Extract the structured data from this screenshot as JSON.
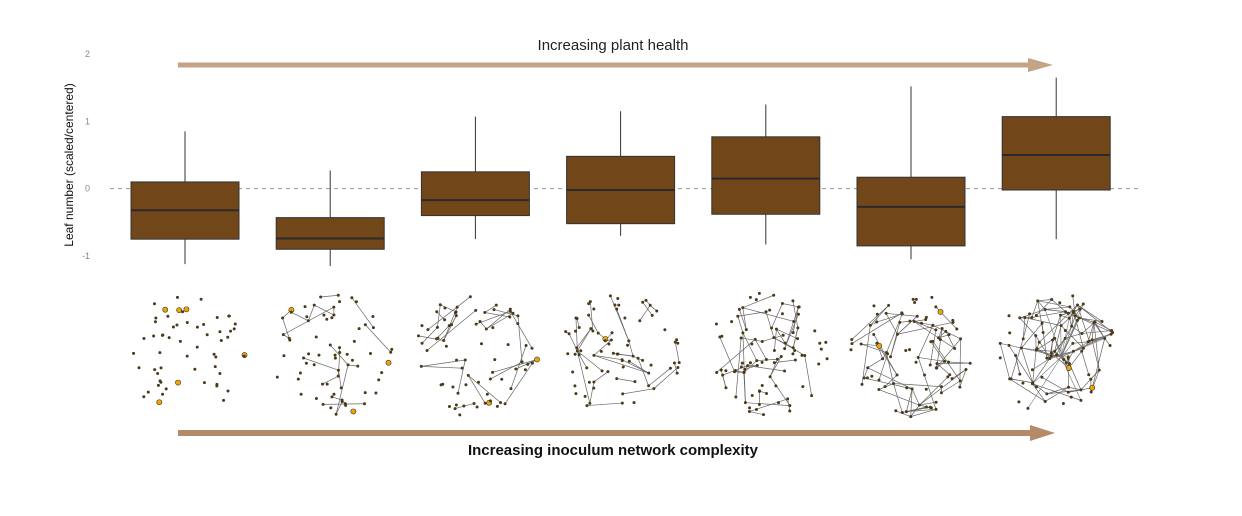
{
  "chart_data": {
    "type": "box",
    "top_annotation": "Increasing plant health",
    "bottom_annotation": "Increasing inoculum network complexity",
    "ylabel": "Leaf number (scaled/centered)",
    "ylim": [
      -1.15,
      2.0
    ],
    "yticks": [
      -1,
      0,
      1,
      2
    ],
    "reference_line": 0,
    "box_color": "#714618",
    "arrow_color": "#c4a386",
    "bottom_arrow_color": "#b48a68",
    "node_color": "#4a3a1a",
    "hub_color": "#f2a500",
    "boxes": [
      {
        "min": -1.12,
        "q1": -0.75,
        "median": -0.32,
        "q3": 0.1,
        "max": 0.85
      },
      {
        "min": -1.15,
        "q1": -0.9,
        "median": -0.74,
        "q3": -0.43,
        "max": 0.27
      },
      {
        "min": -0.75,
        "q1": -0.4,
        "median": -0.17,
        "q3": 0.25,
        "max": 1.07
      },
      {
        "min": -0.7,
        "q1": -0.52,
        "median": -0.02,
        "q3": 0.48,
        "max": 1.15
      },
      {
        "min": -0.83,
        "q1": -0.38,
        "median": 0.15,
        "q3": 0.77,
        "max": 1.25
      },
      {
        "min": -1.05,
        "q1": -0.85,
        "median": -0.27,
        "q3": 0.17,
        "max": 1.52
      },
      {
        "min": -0.75,
        "q1": -0.02,
        "median": 0.5,
        "q3": 1.07,
        "max": 1.65
      }
    ],
    "networks": [
      {
        "nodes": 60,
        "density": 0.0,
        "hubs": 6
      },
      {
        "nodes": 70,
        "density": 0.35,
        "hubs": 3
      },
      {
        "nodes": 75,
        "density": 0.45,
        "hubs": 2
      },
      {
        "nodes": 80,
        "density": 0.5,
        "hubs": 1
      },
      {
        "nodes": 90,
        "density": 0.6,
        "hubs": 0
      },
      {
        "nodes": 90,
        "density": 0.9,
        "hubs": 2
      },
      {
        "nodes": 95,
        "density": 1.3,
        "hubs": 2
      }
    ]
  }
}
